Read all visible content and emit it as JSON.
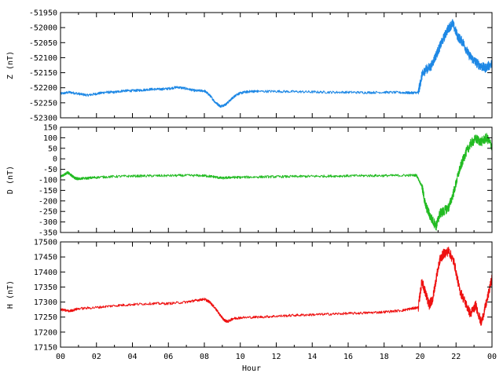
{
  "chart_data": [
    {
      "type": "line",
      "ylabel": "Z (nT)",
      "color": "#1e88e5",
      "xlim": [
        0,
        24
      ],
      "ylim": [
        -52300,
        -51950
      ],
      "yticks": [
        -52300,
        -52250,
        -52200,
        -52150,
        -52100,
        -52050,
        -52000,
        -51950
      ],
      "x": [
        0,
        0.5,
        1,
        1.5,
        2,
        2.5,
        3,
        3.5,
        4,
        4.5,
        5,
        5.5,
        6,
        6.5,
        7,
        7.5,
        8,
        8.3,
        8.6,
        8.9,
        9.2,
        9.5,
        9.8,
        10.2,
        10.6,
        11,
        12,
        13,
        14,
        15,
        16,
        17,
        18,
        19,
        19.5,
        19.9,
        20.1,
        20.3,
        20.6,
        20.9,
        21.2,
        21.5,
        21.8,
        22.1,
        22.4,
        22.7,
        23,
        23.3,
        23.6,
        24
      ],
      "values": [
        -52220,
        -52215,
        -52220,
        -52225,
        -52220,
        -52215,
        -52215,
        -52210,
        -52210,
        -52208,
        -52205,
        -52205,
        -52203,
        -52198,
        -52203,
        -52210,
        -52210,
        -52225,
        -52248,
        -52262,
        -52255,
        -52238,
        -52222,
        -52215,
        -52212,
        -52212,
        -52212,
        -52213,
        -52214,
        -52215,
        -52215,
        -52216,
        -52215,
        -52216,
        -52217,
        -52216,
        -52160,
        -52140,
        -52130,
        -52090,
        -52050,
        -52010,
        -51985,
        -52030,
        -52050,
        -52090,
        -52110,
        -52125,
        -52135,
        -52120
      ]
    },
    {
      "type": "line",
      "ylabel": "D (nT)",
      "color": "#22bb22",
      "xlim": [
        0,
        24
      ],
      "ylim": [
        -350,
        150
      ],
      "yticks": [
        -350,
        -300,
        -250,
        -200,
        -150,
        -100,
        -50,
        0,
        50,
        100,
        150
      ],
      "x": [
        0,
        0.2,
        0.4,
        0.6,
        0.8,
        1,
        1.5,
        2,
        3,
        4,
        5,
        6,
        7,
        8,
        8.5,
        9,
        9.5,
        10,
        11,
        12,
        13,
        14,
        15,
        16,
        17,
        18,
        19,
        19.8,
        20.1,
        20.3,
        20.6,
        20.9,
        21.1,
        21.3,
        21.6,
        21.9,
        22.2,
        22.5,
        22.8,
        23.1,
        23.4,
        23.7,
        24
      ],
      "values": [
        -85,
        -75,
        -65,
        -78,
        -92,
        -95,
        -92,
        -88,
        -84,
        -82,
        -81,
        -80,
        -79,
        -80,
        -85,
        -92,
        -88,
        -88,
        -86,
        -85,
        -84,
        -83,
        -82,
        -81,
        -80,
        -80,
        -79,
        -78,
        -130,
        -220,
        -280,
        -320,
        -260,
        -250,
        -230,
        -150,
        -50,
        20,
        70,
        95,
        80,
        100,
        60
      ]
    },
    {
      "type": "line",
      "ylabel": "H (nT)",
      "xlabel": "Hour",
      "color": "#ee1111",
      "xlim": [
        0,
        24
      ],
      "ylim": [
        17150,
        17500
      ],
      "yticks": [
        17150,
        17200,
        17250,
        17300,
        17350,
        17400,
        17450,
        17500
      ],
      "x": [
        0,
        0.5,
        1,
        2,
        3,
        4,
        5,
        6,
        7,
        7.5,
        8,
        8.3,
        8.6,
        8.9,
        9.1,
        9.3,
        9.6,
        10,
        11,
        12,
        13,
        14,
        15,
        16,
        17,
        18,
        19,
        19.5,
        19.9,
        20.1,
        20.3,
        20.5,
        20.7,
        20.9,
        21.1,
        21.3,
        21.6,
        21.9,
        22.2,
        22.5,
        22.8,
        23.1,
        23.4,
        23.7,
        24
      ],
      "values": [
        17275,
        17270,
        17278,
        17282,
        17288,
        17292,
        17295,
        17295,
        17300,
        17305,
        17310,
        17300,
        17280,
        17255,
        17240,
        17235,
        17245,
        17248,
        17250,
        17253,
        17256,
        17258,
        17260,
        17262,
        17264,
        17267,
        17272,
        17278,
        17282,
        17370,
        17330,
        17290,
        17310,
        17380,
        17440,
        17460,
        17470,
        17430,
        17340,
        17300,
        17260,
        17290,
        17230,
        17300,
        17380
      ]
    }
  ],
  "xticks": [
    "00",
    "02",
    "04",
    "06",
    "08",
    "10",
    "12",
    "14",
    "16",
    "18",
    "20",
    "22",
    "00"
  ]
}
